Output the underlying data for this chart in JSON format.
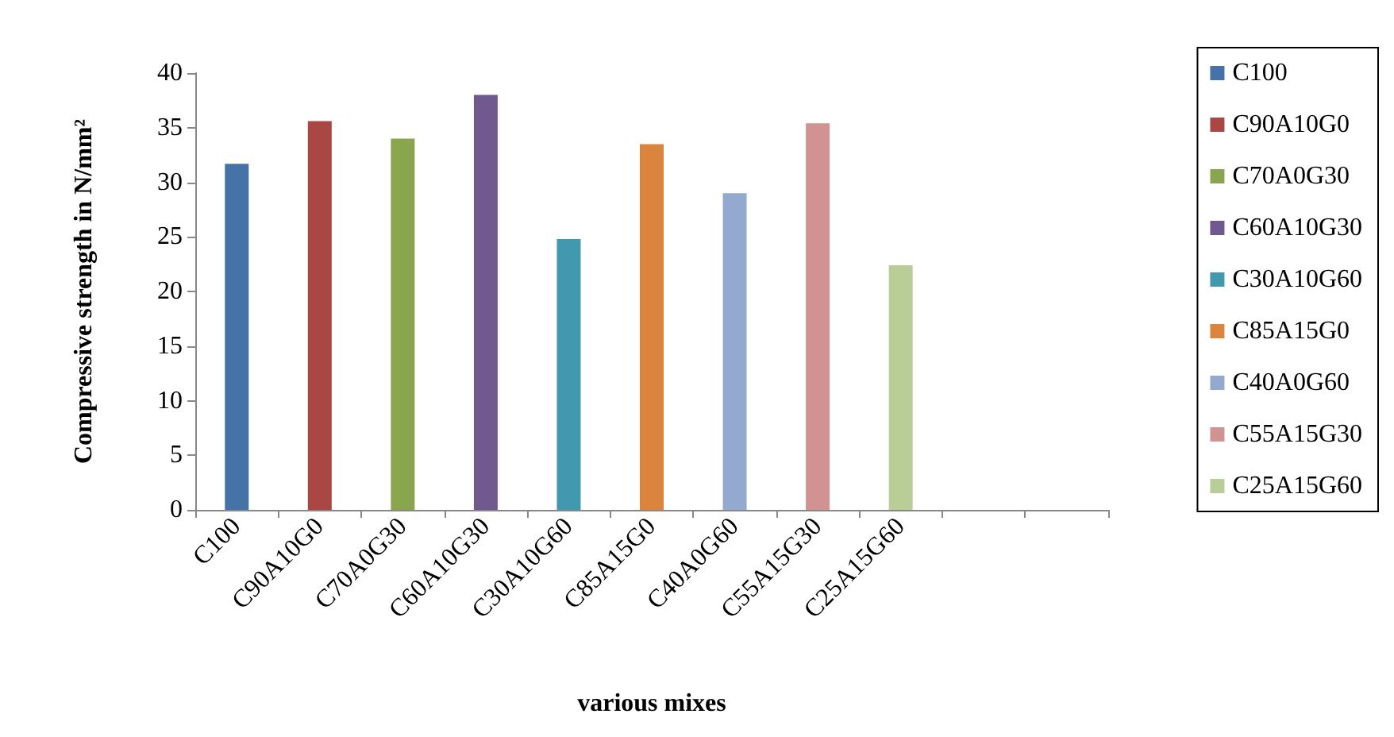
{
  "chart_data": {
    "type": "bar",
    "xlabel": "various mixes",
    "ylabel": "Compressive strength in N/mm²",
    "categories": [
      "C100",
      "C90A10G0",
      "C70A0G30",
      "C60A10G30",
      "C30A10G60",
      "C85A15G0",
      "C40A0G60",
      "C55A15G30",
      "C25A15G60",
      null,
      null
    ],
    "series": [
      {
        "name": "C100",
        "color": "#4572a7",
        "values": [
          31.7,
          null,
          null,
          null,
          null,
          null,
          null,
          null,
          null,
          null,
          null
        ]
      },
      {
        "name": "C90A10G0",
        "color": "#aa4643",
        "values": [
          null,
          35.6,
          null,
          null,
          null,
          null,
          null,
          null,
          null,
          null,
          null
        ]
      },
      {
        "name": "C70A0G30",
        "color": "#89a54e",
        "values": [
          null,
          null,
          34.0,
          null,
          null,
          null,
          null,
          null,
          null,
          null,
          null
        ]
      },
      {
        "name": "C60A10G30",
        "color": "#71588f",
        "values": [
          null,
          null,
          null,
          38.0,
          null,
          null,
          null,
          null,
          null,
          null,
          null
        ]
      },
      {
        "name": "C30A10G60",
        "color": "#4198af",
        "values": [
          null,
          null,
          null,
          null,
          24.8,
          null,
          null,
          null,
          null,
          null,
          null
        ]
      },
      {
        "name": "C85A15G0",
        "color": "#db843d",
        "values": [
          null,
          null,
          null,
          null,
          null,
          33.5,
          null,
          null,
          null,
          null,
          null
        ]
      },
      {
        "name": "C40A0G60",
        "color": "#93a9cf",
        "values": [
          null,
          null,
          null,
          null,
          null,
          null,
          29.0,
          null,
          null,
          null,
          null
        ]
      },
      {
        "name": "C55A15G30",
        "color": "#d19392",
        "values": [
          null,
          null,
          null,
          null,
          null,
          null,
          null,
          35.4,
          null,
          null,
          null
        ]
      },
      {
        "name": "C25A15G60",
        "color": "#b9cd96",
        "values": [
          null,
          null,
          null,
          null,
          null,
          null,
          null,
          null,
          22.4,
          null,
          null
        ]
      }
    ],
    "ylim": [
      0,
      40
    ],
    "yticks": [
      0,
      5,
      10,
      15,
      20,
      25,
      30,
      35,
      40
    ],
    "grid": false,
    "legend": "right"
  }
}
